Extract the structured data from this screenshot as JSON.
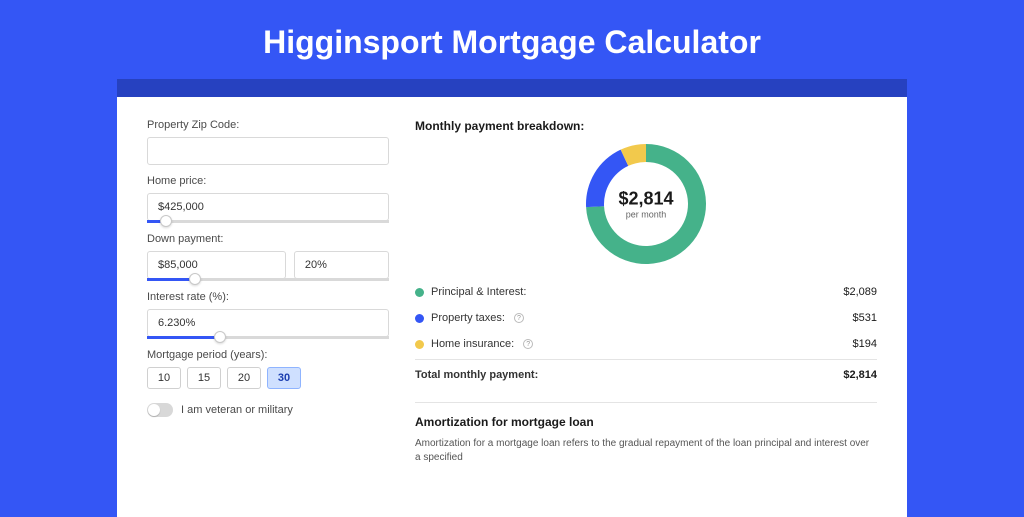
{
  "page": {
    "title": "Higginsport Mortgage Calculator",
    "colors": {
      "page_bg": "#3456f5",
      "band_bg": "#2641c0",
      "card_bg": "#ffffff",
      "accent": "#3456f5"
    }
  },
  "form": {
    "zip": {
      "label": "Property Zip Code:",
      "value": ""
    },
    "home_price": {
      "label": "Home price:",
      "value": "$425,000",
      "slider_pct": 8
    },
    "down_payment": {
      "label": "Down payment:",
      "amount": "$85,000",
      "percent": "20%",
      "slider_pct": 20
    },
    "interest_rate": {
      "label": "Interest rate (%):",
      "value": "6.230%",
      "slider_pct": 30
    },
    "mortgage_period": {
      "label": "Mortgage period (years):",
      "options": [
        "10",
        "15",
        "20",
        "30"
      ],
      "selected_index": 3
    },
    "veteran": {
      "label": "I am veteran or military",
      "on": false
    }
  },
  "breakdown": {
    "heading": "Monthly payment breakdown:",
    "donut": {
      "type": "donut",
      "center_amount": "$2,814",
      "center_sub": "per month",
      "size": 122,
      "ring_width": 18,
      "background": "#ffffff",
      "slices": [
        {
          "label": "Principal & Interest",
          "value": 2089,
          "color": "#45b28a",
          "angle_deg": 267
        },
        {
          "label": "Property taxes",
          "value": 531,
          "color": "#3456f5",
          "angle_deg": 68
        },
        {
          "label": "Home insurance",
          "value": 194,
          "color": "#f2c94c",
          "angle_deg": 25
        }
      ]
    },
    "rows": [
      {
        "dot": "#45b28a",
        "label": "Principal & Interest:",
        "info": false,
        "value": "$2,089"
      },
      {
        "dot": "#3456f5",
        "label": "Property taxes:",
        "info": true,
        "value": "$531"
      },
      {
        "dot": "#f2c94c",
        "label": "Home insurance:",
        "info": true,
        "value": "$194"
      }
    ],
    "total": {
      "label": "Total monthly payment:",
      "value": "$2,814"
    }
  },
  "amortization": {
    "heading": "Amortization for mortgage loan",
    "text": "Amortization for a mortgage loan refers to the gradual repayment of the loan principal and interest over a specified"
  }
}
